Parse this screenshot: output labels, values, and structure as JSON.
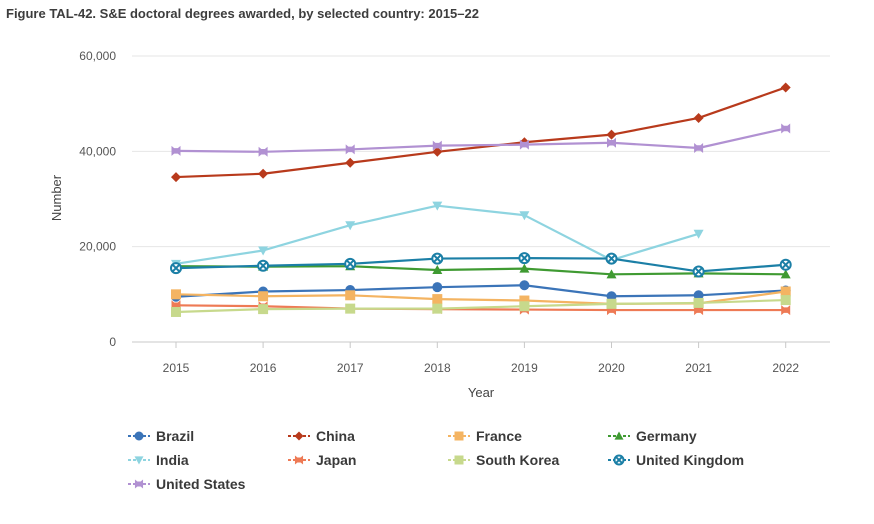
{
  "title": "Figure TAL-42. S&E doctoral degrees awarded, by selected country: 2015–22",
  "chart_data": {
    "type": "line",
    "title": "Figure TAL-42. S&E doctoral degrees awarded, by selected country: 2015–22",
    "xlabel": "Year",
    "ylabel": "Number",
    "categories": [
      "2015",
      "2016",
      "2017",
      "2018",
      "2019",
      "2020",
      "2021",
      "2022"
    ],
    "ylim": [
      0,
      60000
    ],
    "yticks": [
      0,
      20000,
      40000,
      60000
    ],
    "ytick_labels": [
      "0",
      "20,000",
      "40,000",
      "60,000"
    ],
    "grid": true,
    "legend_position": "bottom",
    "series": [
      {
        "name": "Brazil",
        "color": "#3b74b8",
        "marker": "circle",
        "values": [
          9500,
          10600,
          10900,
          11500,
          11900,
          9600,
          9800,
          10800
        ]
      },
      {
        "name": "China",
        "color": "#b83a1c",
        "marker": "diamond",
        "values": [
          34600,
          35300,
          37600,
          39900,
          41900,
          43500,
          47000,
          53400
        ]
      },
      {
        "name": "France",
        "color": "#f4b462",
        "marker": "square",
        "values": [
          10000,
          9600,
          9800,
          9000,
          8700,
          8000,
          8100,
          10600
        ]
      },
      {
        "name": "Germany",
        "color": "#3f9a32",
        "marker": "triangle-up",
        "values": [
          15900,
          15800,
          15900,
          15100,
          15400,
          14200,
          14400,
          14200
        ]
      },
      {
        "name": "India",
        "color": "#8ed4e0",
        "marker": "triangle-down",
        "values": [
          16400,
          19200,
          24500,
          28600,
          26600,
          17200,
          22700,
          null
        ]
      },
      {
        "name": "Japan",
        "color": "#ee7a55",
        "marker": "hexagon",
        "values": [
          7700,
          7500,
          7000,
          6900,
          6800,
          6700,
          6700,
          6700
        ]
      },
      {
        "name": "South Korea",
        "color": "#c7d98c",
        "marker": "square",
        "values": [
          6300,
          6900,
          7000,
          7000,
          7500,
          8000,
          8200,
          8800
        ]
      },
      {
        "name": "United Kingdom",
        "color": "#1b7fa6",
        "marker": "circle-x",
        "values": [
          15500,
          16000,
          16400,
          17500,
          17600,
          17500,
          14800,
          16200
        ]
      },
      {
        "name": "United States",
        "color": "#b191d2",
        "marker": "hexagon",
        "values": [
          40100,
          39900,
          40400,
          41200,
          41400,
          41800,
          40700,
          44800
        ]
      }
    ]
  }
}
